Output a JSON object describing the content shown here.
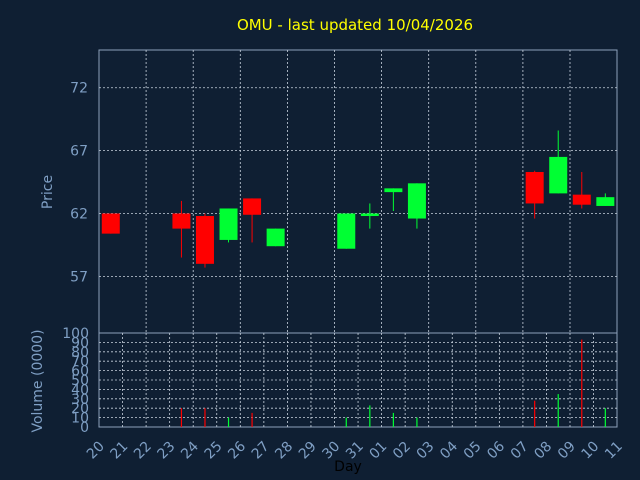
{
  "chart_data": {
    "type": "candlestick",
    "title": "OMU - last updated 10/04/2026",
    "ylabel": "Price",
    "volume_label": "Volume (0000)",
    "xlabel": "Day",
    "x_ticks": [
      "20",
      "21",
      "22",
      "23",
      "24",
      "25",
      "26",
      "27",
      "28",
      "29",
      "30",
      "31",
      "01",
      "02",
      "03",
      "04",
      "05",
      "06",
      "07",
      "08",
      "09",
      "10",
      "11"
    ],
    "price_ylim": [
      52.5,
      75.0
    ],
    "price_ticks": [
      57,
      62,
      67,
      72
    ],
    "volume_ylim": [
      0,
      100
    ],
    "volume_ticks": [
      0,
      10,
      20,
      30,
      40,
      50,
      60,
      70,
      80,
      90,
      100
    ],
    "grid": true,
    "candles": [
      {
        "day": "20",
        "open": 62.0,
        "high": 62.0,
        "low": 60.4,
        "close": 60.4
      },
      {
        "day": "23",
        "open": 62.0,
        "high": 63.0,
        "low": 58.5,
        "close": 60.8
      },
      {
        "day": "24",
        "open": 61.8,
        "high": 62.0,
        "low": 57.7,
        "close": 58.0
      },
      {
        "day": "25",
        "open": 59.9,
        "high": 62.4,
        "low": 59.7,
        "close": 62.4
      },
      {
        "day": "26",
        "open": 63.2,
        "high": 63.2,
        "low": 59.7,
        "close": 61.9
      },
      {
        "day": "27",
        "open": 59.4,
        "high": 60.8,
        "low": 59.4,
        "close": 60.8
      },
      {
        "day": "30",
        "open": 59.2,
        "high": 62.0,
        "low": 59.2,
        "close": 62.0
      },
      {
        "day": "31",
        "open": 61.8,
        "high": 62.8,
        "low": 60.8,
        "close": 62.0
      },
      {
        "day": "01",
        "open": 63.7,
        "high": 64.0,
        "low": 62.2,
        "close": 64.0
      },
      {
        "day": "02",
        "open": 61.6,
        "high": 64.4,
        "low": 60.8,
        "close": 64.4
      },
      {
        "day": "07",
        "open": 65.3,
        "high": 65.4,
        "low": 61.6,
        "close": 62.8
      },
      {
        "day": "08",
        "open": 63.6,
        "high": 68.6,
        "low": 63.6,
        "close": 66.5
      },
      {
        "day": "09",
        "open": 63.5,
        "high": 65.3,
        "low": 62.4,
        "close": 62.7
      },
      {
        "day": "10",
        "open": 62.6,
        "high": 63.6,
        "low": 62.6,
        "close": 63.3
      }
    ],
    "volumes": [
      {
        "day": "23",
        "value": 20,
        "direction": "down"
      },
      {
        "day": "24",
        "value": 20,
        "direction": "down"
      },
      {
        "day": "25",
        "value": 10,
        "direction": "up"
      },
      {
        "day": "26",
        "value": 15,
        "direction": "down"
      },
      {
        "day": "30",
        "value": 10,
        "direction": "up"
      },
      {
        "day": "31",
        "value": 23,
        "direction": "up"
      },
      {
        "day": "01",
        "value": 15,
        "direction": "up"
      },
      {
        "day": "02",
        "value": 10,
        "direction": "up"
      },
      {
        "day": "07",
        "value": 28,
        "direction": "down"
      },
      {
        "day": "08",
        "value": 35,
        "direction": "up"
      },
      {
        "day": "09",
        "value": 93,
        "direction": "down"
      },
      {
        "day": "10",
        "value": 20,
        "direction": "up"
      }
    ],
    "colors": {
      "background": "#0f1f33",
      "plot_border": "#8ea2bb",
      "grid": "#c8d2de",
      "axis_text": "#7f9fc4",
      "title": "#ffff00",
      "up": "#00ff33",
      "down": "#ff0000"
    }
  }
}
